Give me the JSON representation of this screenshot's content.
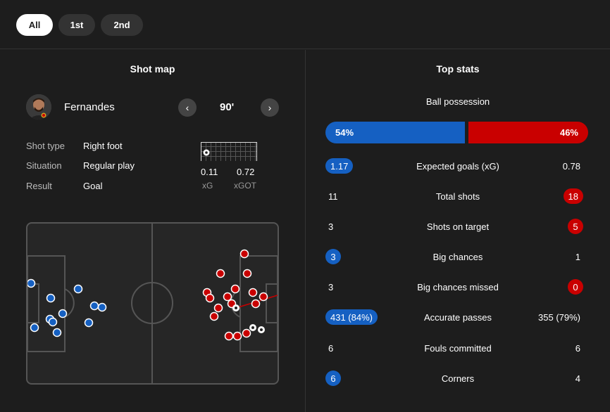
{
  "tabs": [
    {
      "label": "All",
      "active": true
    },
    {
      "label": "1st",
      "active": false
    },
    {
      "label": "2nd",
      "active": false
    }
  ],
  "shot_map": {
    "title": "Shot map",
    "player": {
      "name": "Fernandes",
      "minute": "90'"
    },
    "details": [
      {
        "label": "Shot type",
        "value": "Right foot"
      },
      {
        "label": "Situation",
        "value": "Regular play"
      },
      {
        "label": "Result",
        "value": "Goal"
      }
    ],
    "metrics": [
      {
        "value": "0.11",
        "label": "xG"
      },
      {
        "value": "0.72",
        "label": "xGOT"
      }
    ],
    "colors": {
      "home": "#1560c2",
      "away": "#c90000"
    }
  },
  "top_stats": {
    "title": "Top stats",
    "possession": {
      "label": "Ball possession",
      "home": "54%",
      "away": "46%",
      "home_pct": 54
    },
    "rows": [
      {
        "label": "Expected goals (xG)",
        "home": "1.17",
        "away": "0.78",
        "highlight": "home"
      },
      {
        "label": "Total shots",
        "home": "11",
        "away": "18",
        "highlight": "away"
      },
      {
        "label": "Shots on target",
        "home": "3",
        "away": "5",
        "highlight": "away"
      },
      {
        "label": "Big chances",
        "home": "3",
        "away": "1",
        "highlight": "home"
      },
      {
        "label": "Big chances missed",
        "home": "3",
        "away": "0",
        "highlight": "away"
      },
      {
        "label": "Accurate passes",
        "home": "431 (84%)",
        "away": "355 (79%)",
        "highlight": "home"
      },
      {
        "label": "Fouls committed",
        "home": "6",
        "away": "6",
        "highlight": "none"
      },
      {
        "label": "Corners",
        "home": "6",
        "away": "4",
        "highlight": "home"
      }
    ]
  }
}
